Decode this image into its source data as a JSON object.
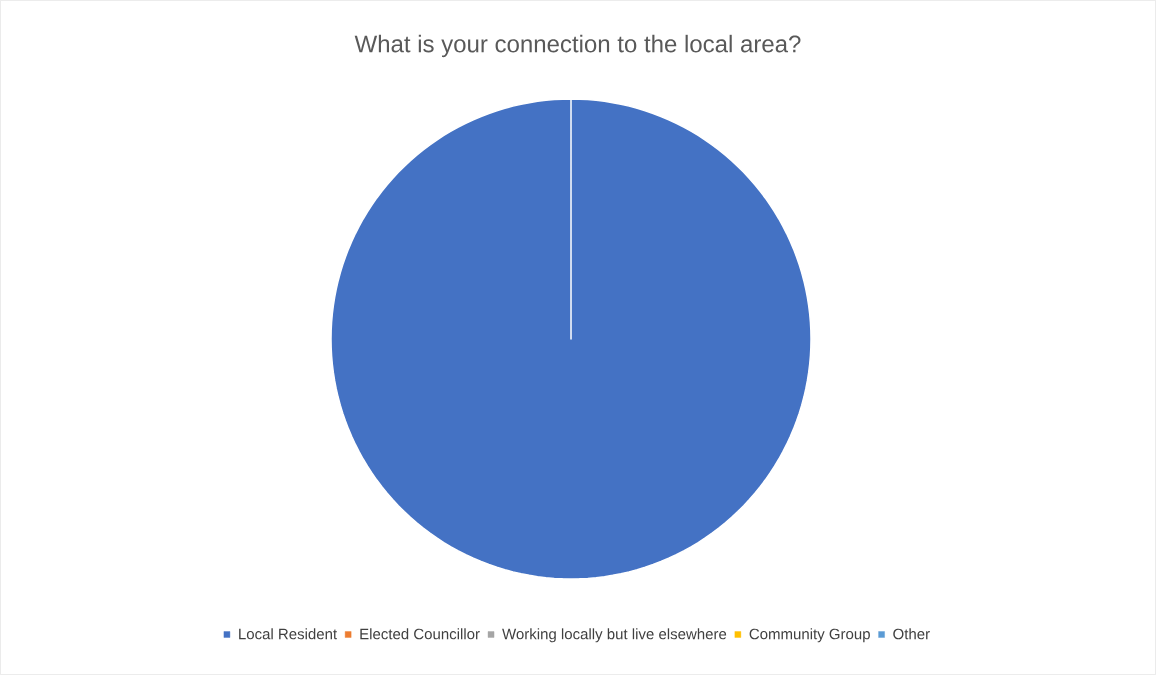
{
  "chart_data": {
    "type": "pie",
    "title": "What is your connection to the local area?",
    "categories": [
      "Local Resident",
      "Elected Councillor",
      "Working locally but live elsewhere",
      "Community Group",
      "Other"
    ],
    "values": [
      100,
      0,
      0,
      0,
      0
    ],
    "colors": [
      "#4472c4",
      "#ed7d31",
      "#a5a5a5",
      "#ffc000",
      "#5b9bd5"
    ],
    "legend": "bottom"
  }
}
